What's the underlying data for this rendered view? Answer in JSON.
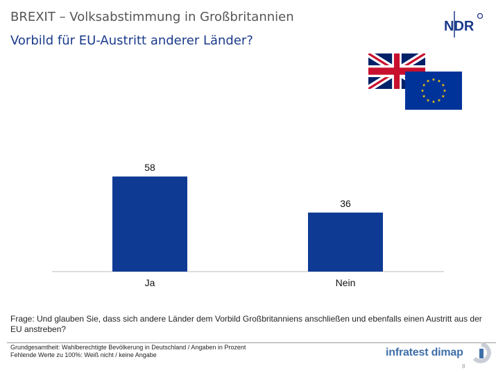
{
  "header": {
    "title": "BREXIT – Volksabstimmung in Großbritannien",
    "subtitle": "Vorbild für EU-Austritt anderer Länder?",
    "logo_text": "NDR"
  },
  "colors": {
    "bar": "#0e3a94",
    "subtitle": "#1a3a8a",
    "brand": "#3f6fa8"
  },
  "icons": {
    "uk_flag": "uk-flag-icon",
    "eu_flag": "eu-flag-icon"
  },
  "chart_data": {
    "type": "bar",
    "categories": [
      "Ja",
      "Nein"
    ],
    "values": [
      58,
      36
    ],
    "ylim": [
      0,
      100
    ],
    "grid": false,
    "legend": "none"
  },
  "question": "Frage: Und glauben Sie, dass sich andere Länder dem Vorbild Großbritanniens anschließen und ebenfalls einen Austritt aus der EU anstreben?",
  "footer": {
    "line1": "Grundgesamtheit:  Wahlberechtigte Bevölkerung  in Deutschland / Angaben  in Prozent",
    "line2": "Fehlende  Werte zu 100%: Weiß nicht / keine Angabe",
    "brand": "infratest dimap",
    "page": "8"
  }
}
